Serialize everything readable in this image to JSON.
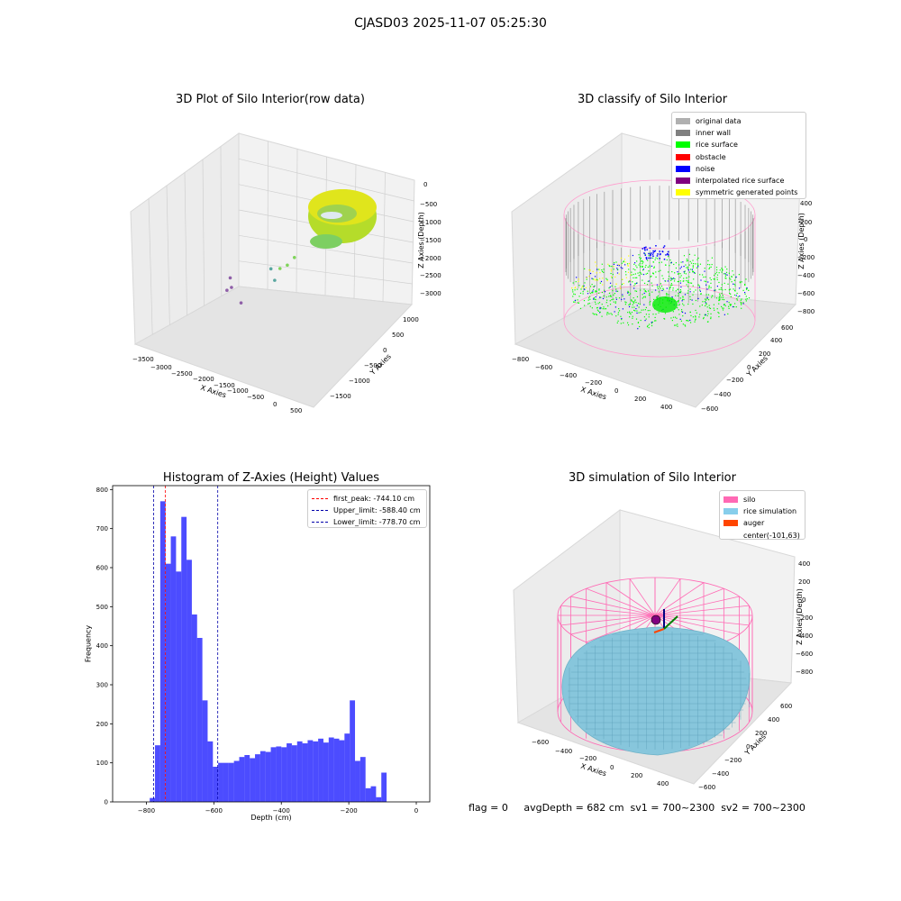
{
  "figure": {
    "title": "CJASD03 2025-11-07 05:25:30",
    "footer": "flag = 0     avgDepth = 682 cm  sv1 = 700~2300  sv2 = 700~2300"
  },
  "chart_data": [
    {
      "type": "scatter",
      "title": "3D Plot of Silo Interior(row data)",
      "xlabel": "X Axies",
      "ylabel": "Y Axies",
      "zlabel": "Z Axies (Depth)",
      "x_ticks": [
        "−3500",
        "−3000",
        "−2500",
        "−2000",
        "−1500",
        "−1000",
        "−500",
        "0",
        "500"
      ],
      "y_ticks": [
        "1000",
        "500",
        "0",
        "−500",
        "−1000",
        "−1500"
      ],
      "z_ticks": [
        "0",
        "−500",
        "−1000",
        "−1500",
        "−2000",
        "−2500",
        "−3000"
      ],
      "xlim": [
        -3600,
        600
      ],
      "ylim": [
        -1600,
        1100
      ],
      "zlim": [
        -3300,
        100
      ],
      "colors": {
        "outlier_purple": "#8f5fa8",
        "outlier_teal": "#5aa7a0",
        "surface_yellow": "#e3e61a",
        "surface_green": "#7fd45a"
      },
      "outlier_points": [
        {
          "x": -3350,
          "y": 900,
          "z": -3200
        },
        {
          "x": -3050,
          "y": 700,
          "z": -2700
        },
        {
          "x": -2700,
          "y": 300,
          "z": -2600
        },
        {
          "x": -2100,
          "y": -200,
          "z": -2500
        },
        {
          "x": -1400,
          "y": 300,
          "z": -1700
        },
        {
          "x": -1200,
          "y": 100,
          "z": -1800
        },
        {
          "x": -1000,
          "y": 0,
          "z": -1400
        },
        {
          "x": -800,
          "y": 100,
          "z": -1300
        },
        {
          "x": -600,
          "y": 200,
          "z": -1100
        }
      ],
      "dense_cluster": "silo ring (yellow-green), near x 0..400, z -300..-1100"
    },
    {
      "type": "scatter",
      "title": "3D classify of Silo Interior",
      "xlabel": "X Axies",
      "ylabel": "Y Axies",
      "zlabel": "Z Axies (Depth)",
      "x_ticks": [
        "−800",
        "−600",
        "−400",
        "−200",
        "0",
        "200",
        "400"
      ],
      "y_ticks": [
        "600",
        "400",
        "200",
        "0",
        "−200",
        "−400",
        "−600"
      ],
      "z_ticks": [
        "400",
        "200",
        "0",
        "−200",
        "−400",
        "−600",
        "−800"
      ],
      "legend": [
        {
          "label": "original data",
          "color": "#b0b0b0"
        },
        {
          "label": "inner wall",
          "color": "#808080"
        },
        {
          "label": "rice surface",
          "color": "#00ff00"
        },
        {
          "label": "obstacle",
          "color": "#ff0000"
        },
        {
          "label": "noise",
          "color": "#0000ff"
        },
        {
          "label": "interpolated rice surface",
          "color": "#800080"
        },
        {
          "label": "symmetric generated points",
          "color": "#ffff00"
        }
      ]
    },
    {
      "type": "bar",
      "title": "Histogram of Z-Axies (Height) Values",
      "xlabel": "Depth (cm)",
      "ylabel": "Frequency",
      "xlim": [
        -900,
        40
      ],
      "ylim": [
        0,
        810
      ],
      "x_ticks": [
        -800,
        -600,
        -400,
        -200,
        0
      ],
      "x_tick_labels": [
        "−800",
        "−600",
        "−400",
        "−200",
        "0"
      ],
      "y_ticks": [
        0,
        100,
        200,
        300,
        400,
        500,
        600,
        700,
        800
      ],
      "bar_color": "#0000ff",
      "bin_edges_start": -790,
      "bin_width": 15.6,
      "values": [
        10,
        145,
        770,
        610,
        680,
        590,
        730,
        620,
        480,
        420,
        260,
        155,
        90,
        100,
        100,
        100,
        105,
        115,
        120,
        112,
        122,
        130,
        128,
        140,
        142,
        140,
        150,
        145,
        155,
        150,
        158,
        155,
        162,
        152,
        165,
        162,
        158,
        175,
        260,
        105,
        115,
        35,
        40,
        12,
        75
      ],
      "bins_note": "start from -790 with width 15.6",
      "vlines": [
        {
          "label": "first_peak: -744.10 cm",
          "x": -744.1,
          "color": "#ff0000"
        },
        {
          "label": "Upper_limit: -588.40 cm",
          "x": -588.4,
          "color": "#0000aa"
        },
        {
          "label": "Lower_limit: -778.70 cm",
          "x": -778.7,
          "color": "#0000aa"
        }
      ]
    },
    {
      "type": "surface",
      "title": "3D simulation of Silo Interior",
      "xlabel": "X Axies",
      "ylabel": "Y Axies",
      "zlabel": "Z Axies (Depth)",
      "x_ticks": [
        "−600",
        "−400",
        "−200",
        "0",
        "200",
        "400"
      ],
      "y_ticks": [
        "600",
        "400",
        "200",
        "0",
        "−200",
        "−400",
        "−600"
      ],
      "z_ticks": [
        "400",
        "200",
        "0",
        "−200",
        "−400",
        "−600",
        "−800"
      ],
      "legend": [
        {
          "label": "silo",
          "color": "#ff69b4"
        },
        {
          "label": "rice simulation",
          "color": "#87ceeb"
        },
        {
          "label": "auger",
          "color": "#ff4500"
        },
        {
          "label": "center(-101,63)",
          "color": ""
        }
      ]
    }
  ]
}
